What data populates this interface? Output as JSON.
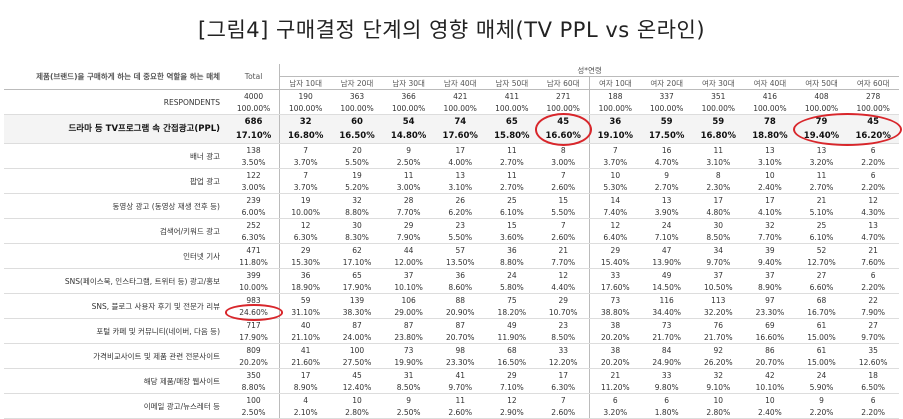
{
  "title": "[그림4] 구매결정 단계의 영향 매체(TV PPL vs 온라인)",
  "table": {
    "header": {
      "label": "제품(브랜드)을 구매하게 하는 데 중요한 역할을 하는 매체",
      "total": "Total",
      "group": "성*연령",
      "columns": [
        "남자 10대",
        "남자 20대",
        "남자 30대",
        "남자 40대",
        "남자 50대",
        "남자 60대",
        "여자 10대",
        "여자 20대",
        "여자 30대",
        "여자 40대",
        "여자 50대",
        "여자 60대"
      ]
    },
    "rows": [
      {
        "label": "RESPONDENTS",
        "counts": [
          4000,
          190,
          363,
          366,
          421,
          411,
          271,
          188,
          337,
          351,
          416,
          408,
          278
        ],
        "percents": [
          "100.00%",
          "100.00%",
          "100.00%",
          "100.00%",
          "100.00%",
          "100.00%",
          "100.00%",
          "100.00%",
          "100.00%",
          "100.00%",
          "100.00%",
          "100.00%",
          "100.00%"
        ]
      },
      {
        "label": "드라마 등 TV프로그램 속 간접광고(PPL)",
        "counts": [
          686,
          32,
          60,
          54,
          74,
          65,
          45,
          36,
          59,
          59,
          78,
          79,
          45
        ],
        "percents": [
          "17.10%",
          "16.80%",
          "16.50%",
          "14.80%",
          "17.60%",
          "15.80%",
          "16.60%",
          "19.10%",
          "17.50%",
          "16.80%",
          "18.80%",
          "19.40%",
          "16.20%"
        ]
      },
      {
        "label": "배너 광고",
        "counts": [
          138,
          7,
          20,
          9,
          17,
          11,
          8,
          7,
          16,
          11,
          13,
          13,
          6
        ],
        "percents": [
          "3.50%",
          "3.70%",
          "5.50%",
          "2.50%",
          "4.00%",
          "2.70%",
          "3.00%",
          "3.70%",
          "4.70%",
          "3.10%",
          "3.10%",
          "3.20%",
          "2.20%"
        ]
      },
      {
        "label": "팝업 광고",
        "counts": [
          122,
          7,
          19,
          11,
          13,
          11,
          7,
          10,
          9,
          8,
          10,
          11,
          6
        ],
        "percents": [
          "3.00%",
          "3.70%",
          "5.20%",
          "3.00%",
          "3.10%",
          "2.70%",
          "2.60%",
          "5.30%",
          "2.70%",
          "2.30%",
          "2.40%",
          "2.70%",
          "2.20%"
        ]
      },
      {
        "label": "동영상 광고 (동영상 재생 전후 등)",
        "counts": [
          239,
          19,
          32,
          28,
          26,
          25,
          15,
          14,
          13,
          17,
          17,
          21,
          12
        ],
        "percents": [
          "6.00%",
          "10.00%",
          "8.80%",
          "7.70%",
          "6.20%",
          "6.10%",
          "5.50%",
          "7.40%",
          "3.90%",
          "4.80%",
          "4.10%",
          "5.10%",
          "4.30%"
        ]
      },
      {
        "label": "검색어/키워드 광고",
        "counts": [
          252,
          12,
          30,
          29,
          23,
          15,
          7,
          12,
          24,
          30,
          32,
          25,
          13
        ],
        "percents": [
          "6.30%",
          "6.30%",
          "8.30%",
          "7.90%",
          "5.50%",
          "3.60%",
          "2.60%",
          "6.40%",
          "7.10%",
          "8.50%",
          "7.70%",
          "6.10%",
          "4.70%"
        ]
      },
      {
        "label": "인터넷 기사",
        "counts": [
          471,
          29,
          62,
          44,
          57,
          36,
          21,
          29,
          47,
          34,
          39,
          52,
          21
        ],
        "percents": [
          "11.80%",
          "15.30%",
          "17.10%",
          "12.00%",
          "13.50%",
          "8.80%",
          "7.70%",
          "15.40%",
          "13.90%",
          "9.70%",
          "9.40%",
          "12.70%",
          "7.60%"
        ]
      },
      {
        "label": "SNS(페이스북, 인스타그램, 트위터 등) 광고/홍보",
        "counts": [
          399,
          36,
          65,
          37,
          36,
          24,
          12,
          33,
          49,
          37,
          37,
          27,
          6
        ],
        "percents": [
          "10.00%",
          "18.90%",
          "17.90%",
          "10.10%",
          "8.60%",
          "5.80%",
          "4.40%",
          "17.60%",
          "14.50%",
          "10.50%",
          "8.90%",
          "6.60%",
          "2.20%"
        ]
      },
      {
        "label": "SNS, 블로그 사용자 후기 및 전문가 리뷰",
        "counts": [
          983,
          59,
          139,
          106,
          88,
          75,
          29,
          73,
          116,
          113,
          97,
          68,
          22
        ],
        "percents": [
          "24.60%",
          "31.10%",
          "38.30%",
          "29.00%",
          "20.90%",
          "18.20%",
          "10.70%",
          "38.80%",
          "34.40%",
          "32.20%",
          "23.30%",
          "16.70%",
          "7.90%"
        ]
      },
      {
        "label": "포털 카페 및 커뮤니티(네이버, 다음 등)",
        "counts": [
          717,
          40,
          87,
          87,
          87,
          49,
          23,
          38,
          73,
          76,
          69,
          61,
          27
        ],
        "percents": [
          "17.90%",
          "21.10%",
          "24.00%",
          "23.80%",
          "20.70%",
          "11.90%",
          "8.50%",
          "20.20%",
          "21.70%",
          "21.70%",
          "16.60%",
          "15.00%",
          "9.70%"
        ]
      },
      {
        "label": "가격비교사이트 및 제품 관련 전문사이트",
        "counts": [
          809,
          41,
          100,
          73,
          98,
          68,
          33,
          38,
          84,
          92,
          86,
          61,
          35
        ],
        "percents": [
          "20.20%",
          "21.60%",
          "27.50%",
          "19.90%",
          "23.30%",
          "16.50%",
          "12.20%",
          "20.20%",
          "24.90%",
          "26.20%",
          "20.70%",
          "15.00%",
          "12.60%"
        ]
      },
      {
        "label": "해당 제품/매장 웹사이트",
        "counts": [
          350,
          17,
          45,
          31,
          41,
          29,
          17,
          21,
          33,
          32,
          42,
          24,
          18
        ],
        "percents": [
          "8.80%",
          "8.90%",
          "12.40%",
          "8.50%",
          "9.70%",
          "7.10%",
          "6.30%",
          "11.20%",
          "9.80%",
          "9.10%",
          "10.10%",
          "5.90%",
          "6.50%"
        ]
      },
      {
        "label": "이메일 광고/뉴스레터 등",
        "counts": [
          100,
          4,
          10,
          9,
          11,
          12,
          7,
          6,
          6,
          10,
          10,
          9,
          6
        ],
        "percents": [
          "2.50%",
          "2.10%",
          "2.80%",
          "2.50%",
          "2.60%",
          "2.90%",
          "2.60%",
          "3.20%",
          "1.80%",
          "2.80%",
          "2.40%",
          "2.20%",
          "2.20%"
        ]
      }
    ]
  }
}
